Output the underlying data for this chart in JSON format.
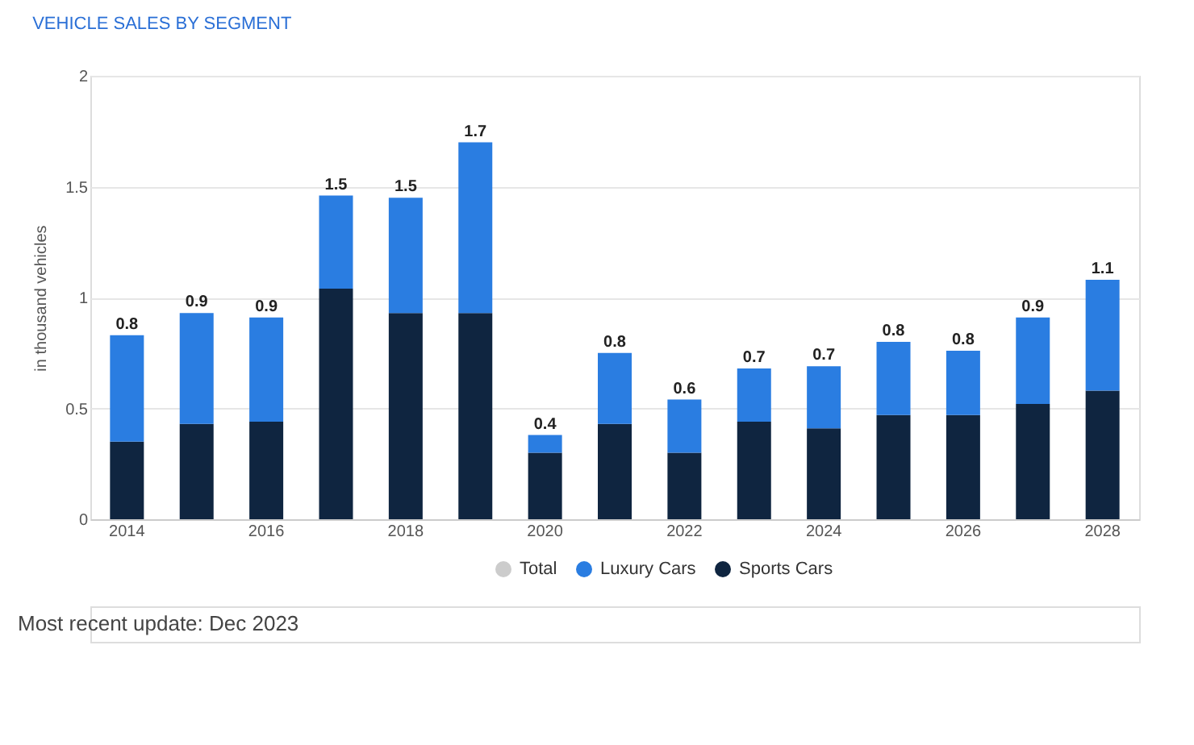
{
  "chart_data": {
    "type": "bar",
    "title": "VEHICLE SALES BY SEGMENT",
    "ylabel": "in thousand vehicles",
    "categories": [
      "2014",
      null,
      "2016",
      null,
      "2018",
      null,
      "2020",
      null,
      "2022",
      null,
      "2024",
      null,
      "2026",
      null,
      "2028"
    ],
    "stacked": true,
    "series": [
      {
        "name": "Sports Cars",
        "color": "#0f2540",
        "values": [
          0.35,
          0.43,
          0.44,
          1.04,
          0.93,
          0.93,
          0.3,
          0.43,
          0.3,
          0.44,
          0.41,
          0.47,
          0.47,
          0.52,
          0.58
        ]
      },
      {
        "name": "Luxury Cars",
        "color": "#2a7de1",
        "values": [
          0.48,
          0.5,
          0.47,
          0.42,
          0.52,
          0.77,
          0.08,
          0.32,
          0.24,
          0.24,
          0.28,
          0.33,
          0.29,
          0.39,
          0.5
        ]
      },
      {
        "name": "Total",
        "color": "#cccccc",
        "values": [
          null,
          null,
          null,
          null,
          null,
          null,
          null,
          null,
          null,
          null,
          null,
          null,
          null,
          null,
          null
        ]
      }
    ],
    "totals": [
      "0.8",
      "0.9",
      "0.9",
      "1.5",
      "1.5",
      "1.7",
      "0.4",
      "0.8",
      "0.6",
      "0.7",
      "0.7",
      "0.8",
      "0.8",
      "0.9",
      "1.1"
    ],
    "ylim": [
      0,
      2
    ],
    "yticks": [
      0,
      0.5,
      1,
      1.5,
      2
    ],
    "grid": "y",
    "legend": "bottom",
    "annotations": [
      "Most recent update: Dec 2023"
    ]
  }
}
